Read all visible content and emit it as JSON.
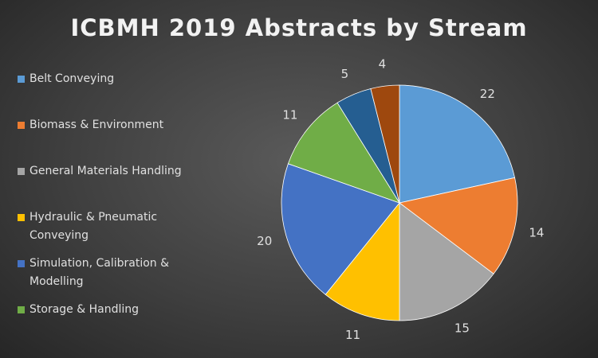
{
  "chart_data": {
    "type": "pie",
    "title": "ICBMH 2019 Abstracts by Stream",
    "legend_position": "left",
    "slices": [
      {
        "name": "Belt Conveying",
        "value": 22,
        "label": "22",
        "color": "#5b9bd5"
      },
      {
        "name": "Biomass & Environment",
        "value": 14,
        "label": "14",
        "color": "#ed7d31"
      },
      {
        "name": "General Materials Handling",
        "value": 15,
        "label": "15",
        "color": "#a5a5a5"
      },
      {
        "name": "Hydraulic & Pneumatic Conveying",
        "value": 11,
        "label": "11",
        "color": "#ffc000"
      },
      {
        "name": "Simulation, Calibration & Modelling",
        "value": 20,
        "label": "20",
        "color": "#4472c4"
      },
      {
        "name": "Storage & Handling",
        "value": 11,
        "label": "11",
        "color": "#70ad47"
      },
      {
        "name": "",
        "value": 5,
        "label": "5",
        "color": "#255e91"
      },
      {
        "name": "",
        "value": 4,
        "label": "4",
        "color": "#9e480e"
      }
    ]
  }
}
